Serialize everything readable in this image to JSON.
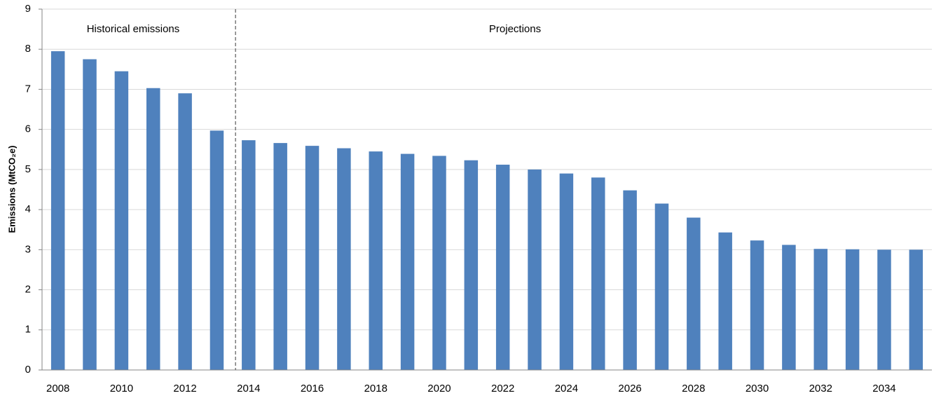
{
  "chart_data": {
    "type": "bar",
    "y_label": "Emissions (MtCO₂e)",
    "annotations": [
      "Historical emissions",
      "Projections"
    ],
    "categories": [
      "2008",
      null,
      "2010",
      null,
      "2012",
      null,
      "2014",
      null,
      "2016",
      null,
      "2018",
      null,
      "2020",
      null,
      "2022",
      null,
      "2024",
      null,
      "2026",
      null,
      "2028",
      null,
      "2030",
      null,
      "2032",
      null,
      "2034",
      null
    ],
    "values": [
      7.95,
      7.75,
      7.45,
      7.03,
      6.9,
      5.97,
      5.73,
      5.66,
      5.59,
      5.53,
      5.45,
      5.39,
      5.34,
      5.23,
      5.12,
      5.0,
      4.9,
      4.8,
      4.48,
      4.15,
      3.8,
      3.43,
      3.23,
      3.12,
      3.02,
      3.01,
      3.0,
      3.0
    ],
    "color": "#4f81bd",
    "ylim": [
      0,
      9
    ],
    "yticks": [
      0,
      1,
      2,
      3,
      4,
      5,
      6,
      7,
      8,
      9
    ],
    "grid": true
  }
}
